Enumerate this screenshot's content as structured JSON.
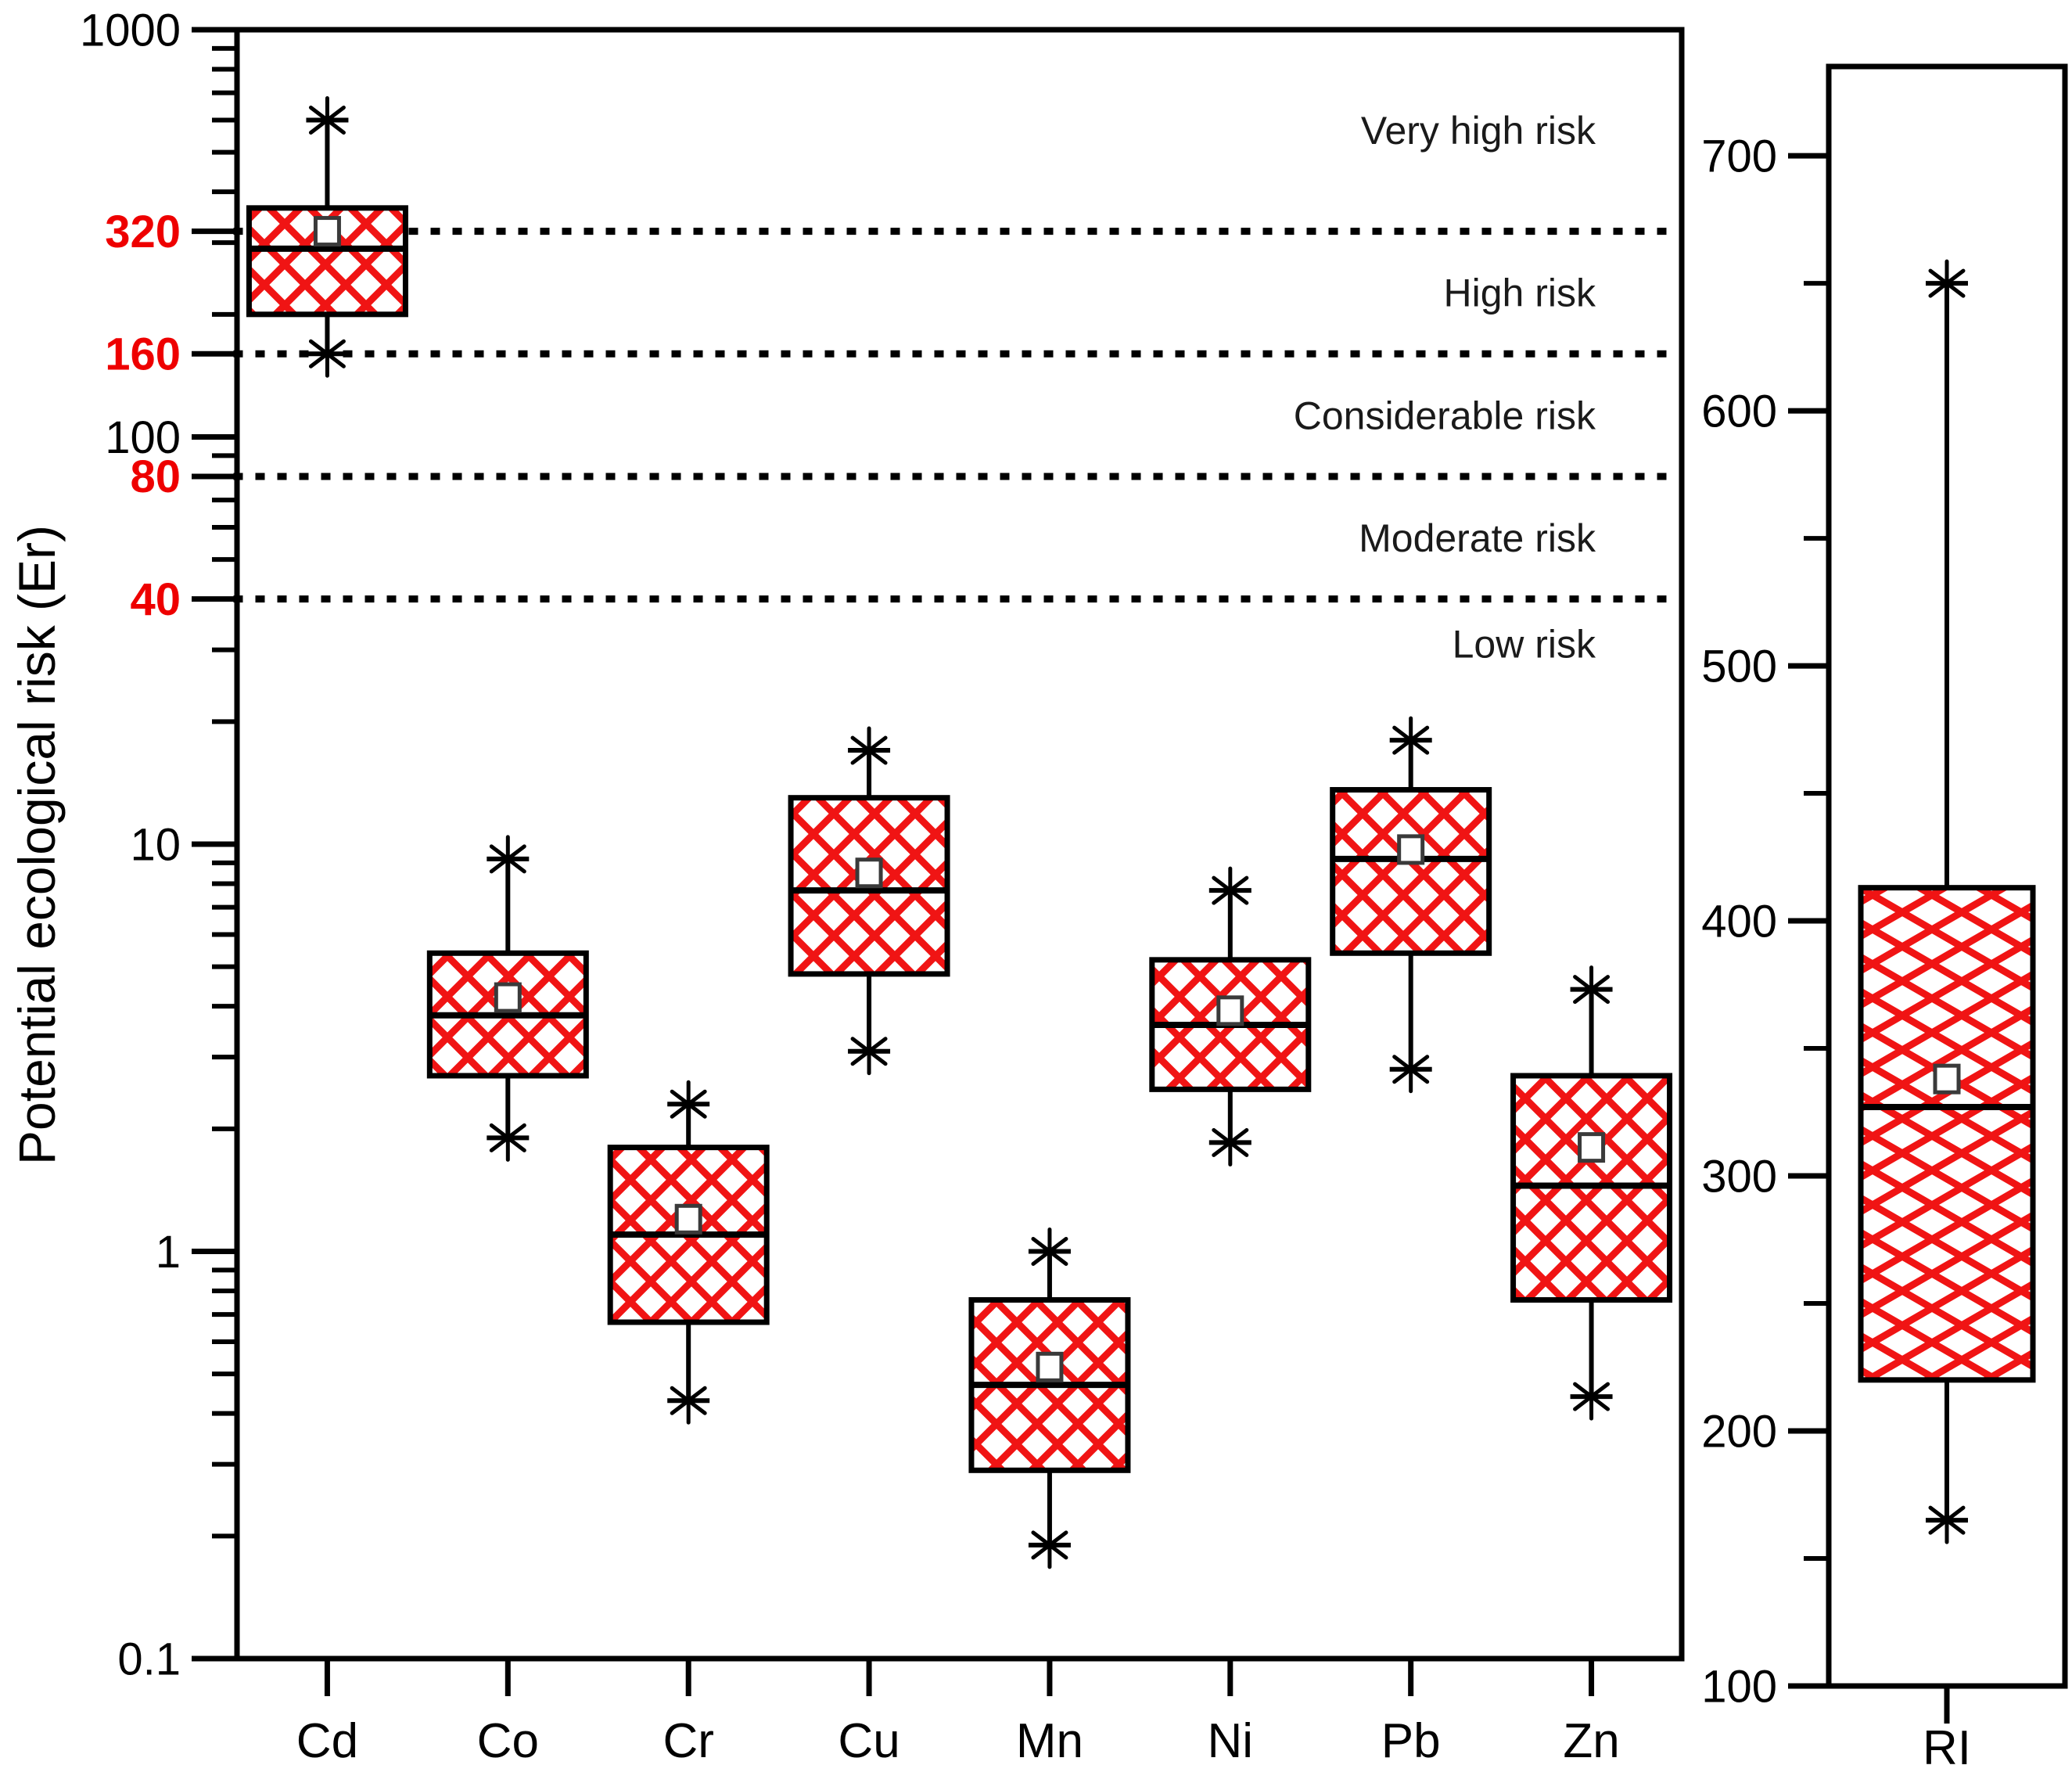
{
  "chart_data": {
    "type": "box",
    "title": "",
    "legend": "none",
    "grid": "off",
    "colors": {
      "hatch_red": "#f01414",
      "axis_black": "#000000",
      "red_tick_label": "#ee0000",
      "risk_text": "#1a1a1a",
      "background": "#ffffff"
    },
    "left_panel": {
      "ylabel": "Potential ecological risk (Er)",
      "yscale": "log",
      "ylim": [
        0.1,
        1000
      ],
      "yticks": [
        {
          "v": 1000,
          "label": "1000"
        },
        {
          "v": 100,
          "label": "100"
        },
        {
          "v": 10,
          "label": "10"
        },
        {
          "v": 1,
          "label": "1"
        },
        {
          "v": 0.1,
          "label": "0.1"
        }
      ],
      "thresholds": [
        {
          "value": 320,
          "label": "320"
        },
        {
          "value": 160,
          "label": "160"
        },
        {
          "value": 80,
          "label": "80"
        },
        {
          "value": 40,
          "label": "40"
        }
      ],
      "risk_zones": [
        {
          "label": "Very high risk",
          "label_at_value": 566
        },
        {
          "label": "High risk",
          "label_at_value": 226
        },
        {
          "label": "Considerable risk",
          "label_at_value": 113
        },
        {
          "label": "Moderate risk",
          "label_at_value": 56.5
        },
        {
          "label": "Low risk",
          "label_at_value": 31
        }
      ],
      "categories": [
        "Cd",
        "Co",
        "Cr",
        "Cu",
        "Mn",
        "Ni",
        "Pb",
        "Zn"
      ],
      "boxes": [
        {
          "category": "Cd",
          "whisker_low": 160,
          "q1": 200,
          "median": 290,
          "mean": 320,
          "q3": 365,
          "whisker_high": 600
        },
        {
          "category": "Co",
          "whisker_low": 1.9,
          "q1": 2.7,
          "median": 3.8,
          "mean": 4.2,
          "q3": 5.4,
          "whisker_high": 9.2
        },
        {
          "category": "Cr",
          "whisker_low": 0.43,
          "q1": 0.67,
          "median": 1.1,
          "mean": 1.2,
          "q3": 1.8,
          "whisker_high": 2.3
        },
        {
          "category": "Cu",
          "whisker_low": 3.1,
          "q1": 4.8,
          "median": 7.7,
          "mean": 8.5,
          "q3": 13,
          "whisker_high": 17
        },
        {
          "category": "Mn",
          "whisker_low": 0.19,
          "q1": 0.29,
          "median": 0.47,
          "mean": 0.52,
          "q3": 0.76,
          "whisker_high": 1.0
        },
        {
          "category": "Ni",
          "whisker_low": 1.85,
          "q1": 2.5,
          "median": 3.6,
          "mean": 3.9,
          "q3": 5.2,
          "whisker_high": 7.7
        },
        {
          "category": "Pb",
          "whisker_low": 2.8,
          "q1": 5.4,
          "median": 9.2,
          "mean": 9.7,
          "q3": 13.6,
          "whisker_high": 18
        },
        {
          "category": "Zn",
          "whisker_low": 0.44,
          "q1": 0.76,
          "median": 1.45,
          "mean": 1.8,
          "q3": 2.7,
          "whisker_high": 4.4
        }
      ]
    },
    "right_panel": {
      "category": "RI",
      "yscale": "linear",
      "ylim": [
        100,
        735
      ],
      "yticks": [
        {
          "v": 700,
          "label": "700"
        },
        {
          "v": 600,
          "label": "600"
        },
        {
          "v": 500,
          "label": "500"
        },
        {
          "v": 400,
          "label": "400"
        },
        {
          "v": 300,
          "label": "300"
        },
        {
          "v": 200,
          "label": "200"
        },
        {
          "v": 100,
          "label": "100"
        }
      ],
      "yticks_minor": [
        650,
        550,
        450,
        350,
        250,
        150
      ],
      "box": {
        "category": "RI",
        "whisker_low": 165,
        "q1": 220,
        "median": 327,
        "mean": 338,
        "q3": 413,
        "whisker_high": 650
      }
    }
  }
}
